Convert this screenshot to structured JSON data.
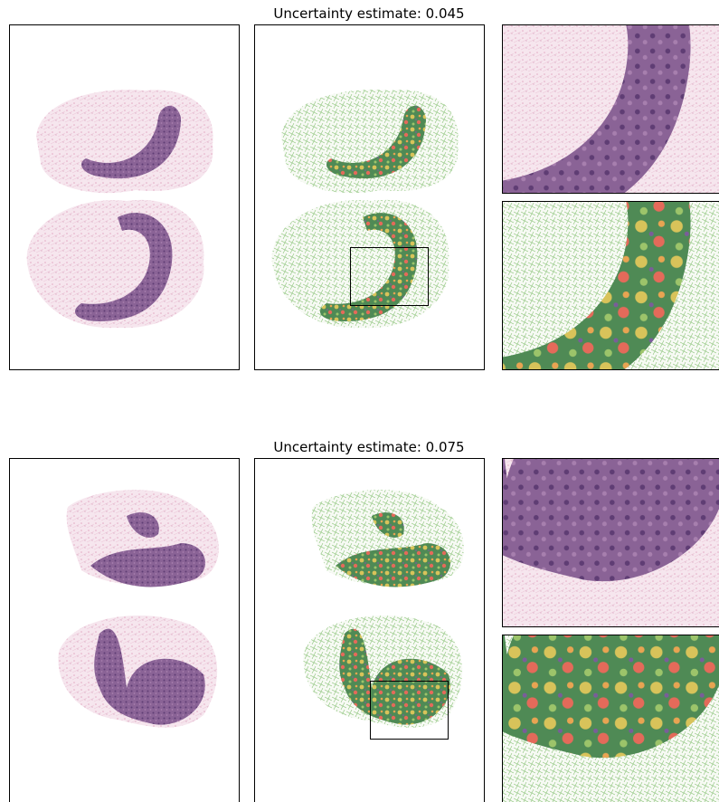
{
  "panels": [
    {
      "title": "Uncertainty estimate: 0.045"
    },
    {
      "title": "Uncertainty estimate: 0.075"
    }
  ]
}
